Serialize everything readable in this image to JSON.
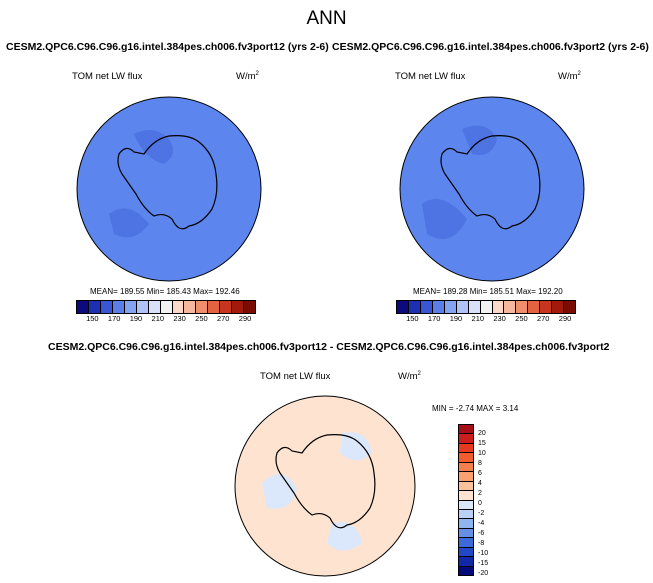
{
  "page": {
    "title": "ANN"
  },
  "panels": [
    {
      "title": "CESM2.QPC6.C96.C96.g16.intel.384pes.ch006.fv3port12 (yrs 2-6)",
      "variable": "TOM net LW flux",
      "units": "W/m",
      "units_exp": "2",
      "stats": "MEAN= 189.55  Min= 185.43  Max= 192.46",
      "fill": "#5c86ee",
      "patch": "#4d74e2"
    },
    {
      "title": "CESM2.QPC6.C96.C96.g16.intel.384pes.ch006.fv3port2 (yrs 2-6)",
      "variable": "TOM net LW flux",
      "units": "W/m",
      "units_exp": "2",
      "stats": "MEAN= 189.28  Min= 185.51  Max= 192.20",
      "fill": "#5c86ee",
      "patch": "#4d74e2"
    },
    {
      "title": "CESM2.QPC6.C96.C96.g16.intel.384pes.ch006.fv3port12 - CESM2.QPC6.C96.C96.g16.intel.384pes.ch006.fv3port2",
      "variable": "TOM net LW flux",
      "units": "W/m",
      "units_exp": "2",
      "stats": "MIN = -2.74 MAX =  3.14",
      "fill": "#fde3d0",
      "patch": "#dbe8fb"
    }
  ],
  "colorbar_abs": {
    "colors": [
      "#0c0a7e",
      "#1f2fb5",
      "#3a56d6",
      "#5b7fe9",
      "#84a4f2",
      "#aec4f7",
      "#d7e2fa",
      "#f2f2f2",
      "#fad9c8",
      "#f6b89d",
      "#f08f6c",
      "#e36341",
      "#c8351e",
      "#a11a0c",
      "#7a0d03"
    ],
    "ticks": [
      "150",
      "170",
      "190",
      "210",
      "230",
      "250",
      "270",
      "290"
    ]
  },
  "colorbar_diff": {
    "colors": [
      "#a50f15",
      "#cb1d1d",
      "#e7391f",
      "#f25c2e",
      "#f6804c",
      "#f9a270",
      "#fbc39c",
      "#fde3d0",
      "#dbe8fb",
      "#b9d1f6",
      "#8fb4ef",
      "#6590e6",
      "#3d6adb",
      "#2248c8",
      "#1128a7",
      "#050a7a"
    ],
    "ticks": [
      "20",
      "15",
      "10",
      "8",
      "6",
      "4",
      "2",
      "0",
      "-2",
      "-4",
      "-6",
      "-8",
      "-10",
      "-15",
      "-20"
    ]
  }
}
